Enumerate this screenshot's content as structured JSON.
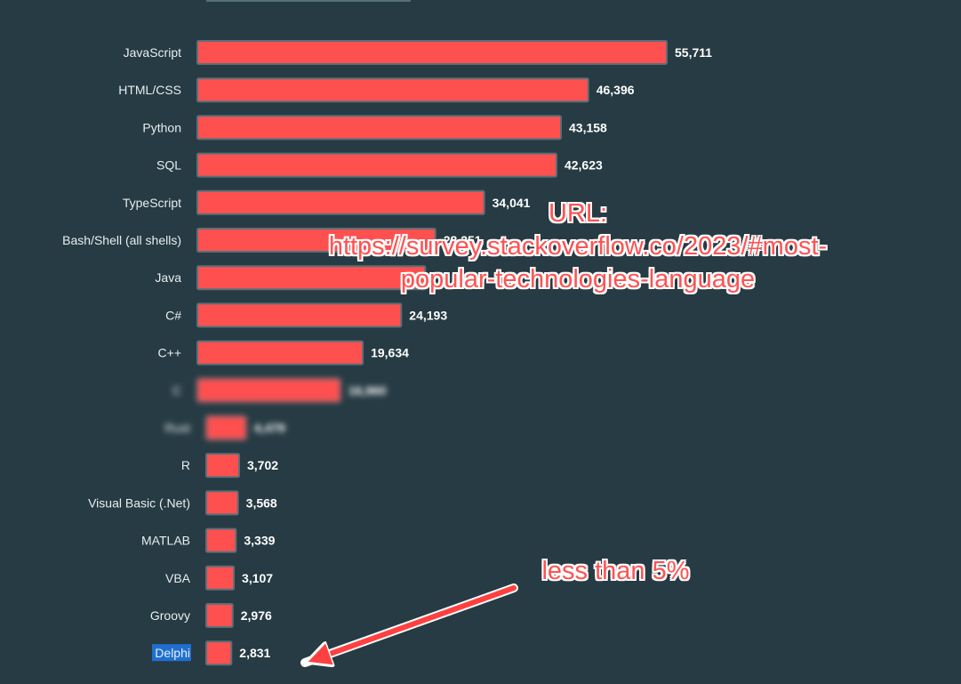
{
  "chart_data": {
    "type": "bar",
    "orientation": "horizontal",
    "categories": [
      "JavaScript",
      "HTML/CSS",
      "Python",
      "SQL",
      "TypeScript",
      "Bash/Shell (all shells)",
      "Java",
      "C#",
      "C++",
      "C",
      "Rust",
      "R",
      "Visual Basic (.Net)",
      "MATLAB",
      "VBA",
      "Groovy",
      "Delphi"
    ],
    "values": [
      55711,
      46396,
      43158,
      42623,
      34041,
      28251,
      27042,
      24193,
      19634,
      16960,
      4479,
      3702,
      3568,
      3339,
      3107,
      2976,
      2831
    ],
    "value_labels": [
      "55,711",
      "46,396",
      "43,158",
      "42,623",
      "34,041",
      "28,251",
      "",
      "24,193",
      "19,634",
      "16,960",
      "4,479",
      "3,702",
      "3,568",
      "3,339",
      "3,107",
      "2,976",
      "2,831"
    ],
    "blurred_categories": [
      "C",
      "Rust"
    ],
    "selected_category": "Delphi",
    "bar_color": "#ff5050",
    "bar_border_color": "#5b6f78",
    "background_color": "#263b43",
    "grid": false,
    "legend": "none"
  },
  "annotations": {
    "url_heading": "URL:",
    "url_line1": "https://survey.stackoverflow.co/2023/#most-",
    "url_line2": "popular-technologies-language",
    "note": "less than 5%",
    "color": "#ff5252",
    "arrow_target_category": "Delphi"
  }
}
